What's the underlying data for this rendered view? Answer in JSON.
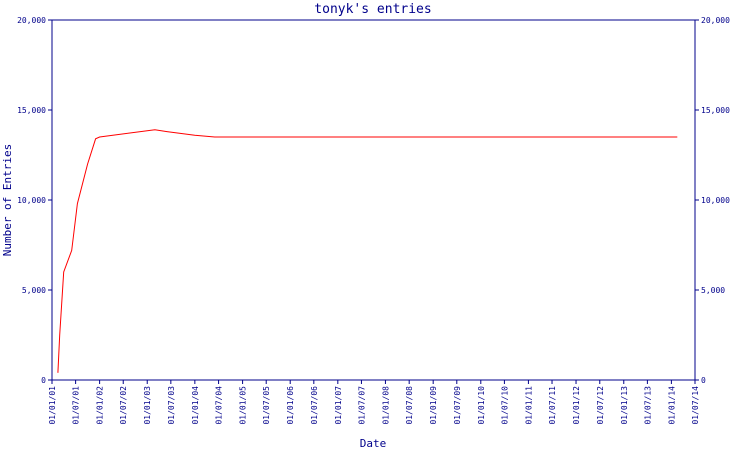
{
  "chart_data": {
    "type": "line",
    "title": "tonyk's entries",
    "xlabel": "Date",
    "ylabel": "Number of Entries",
    "ylim": [
      0,
      20000
    ],
    "yticks": [
      0,
      5000,
      10000,
      15000,
      20000
    ],
    "ytick_labels": [
      "0",
      "5,000",
      "10,000",
      "15,000",
      "20,000"
    ],
    "xticks": [
      "01/01/01",
      "01/07/01",
      "01/01/02",
      "01/07/02",
      "01/01/03",
      "01/07/03",
      "01/01/04",
      "01/07/04",
      "01/01/05",
      "01/07/05",
      "01/01/06",
      "01/07/06",
      "01/01/07",
      "01/07/07",
      "01/01/08",
      "01/07/08",
      "01/01/09",
      "01/07/09",
      "01/01/10",
      "01/07/10",
      "01/01/11",
      "01/07/11",
      "01/01/12",
      "01/07/12",
      "01/01/13",
      "01/07/13",
      "01/01/14",
      "01/07/14"
    ],
    "grid": false,
    "series": [
      {
        "color": "#ff0000",
        "x": [
          "2001-02-15",
          "2001-03-01",
          "2001-04-01",
          "2001-06-01",
          "2001-07-15",
          "2001-10-01",
          "2001-12-01",
          "2002-01-01",
          "2003-03-01",
          "2003-06-01",
          "2004-01-01",
          "2004-06-01",
          "2006-01-01",
          "2008-01-01",
          "2010-01-01",
          "2012-01-01",
          "2014-01-01",
          "2014-02-15"
        ],
        "y": [
          400,
          2500,
          6000,
          7200,
          9800,
          12000,
          13400,
          13500,
          13900,
          13800,
          13600,
          13500,
          13500,
          13500,
          13500,
          13500,
          13500,
          13500
        ]
      }
    ]
  }
}
